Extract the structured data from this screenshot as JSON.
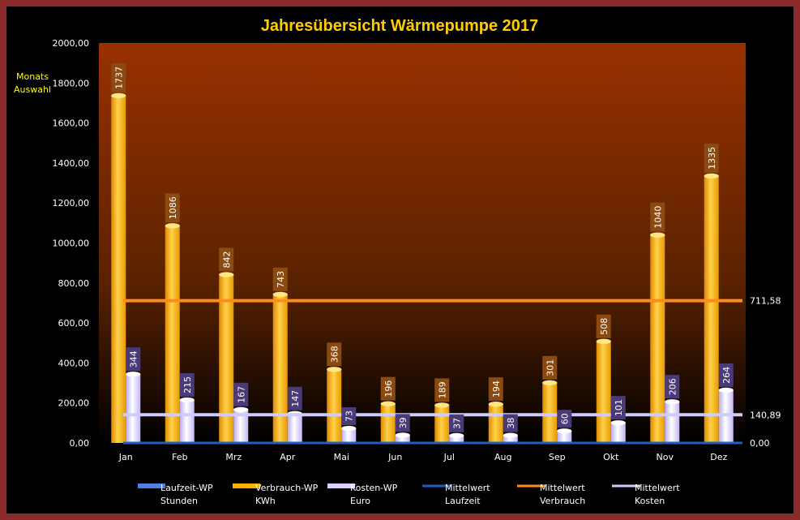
{
  "chart_data": {
    "type": "bar",
    "title": "Jahresübersicht Wärmepumpe  2017",
    "side_label": [
      "Monats",
      "Auswahl"
    ],
    "categories": [
      "Jan",
      "Feb",
      "Mrz",
      "Apr",
      "Mai",
      "Jun",
      "Jul",
      "Aug",
      "Sep",
      "Okt",
      "Nov",
      "Dez"
    ],
    "ylim": [
      0,
      2000
    ],
    "yticks": [
      "0,00",
      "200,00",
      "400,00",
      "600,00",
      "800,00",
      "1000,00",
      "1200,00",
      "1400,00",
      "1600,00",
      "1800,00",
      "2000,00"
    ],
    "series": [
      {
        "name": "Laufzeit-WP",
        "unit": "Stunden",
        "kind": "bar",
        "color": "#4f7fe0",
        "values": [
          0,
          0,
          0,
          0,
          0,
          0,
          0,
          0,
          0,
          0,
          0,
          0
        ]
      },
      {
        "name": "Verbrauch-WP",
        "unit": "KWh",
        "kind": "bar",
        "color": "#ffb300",
        "values": [
          1737,
          1086,
          842,
          743,
          368,
          196,
          189,
          194,
          301,
          508,
          1040,
          1335
        ]
      },
      {
        "name": "Kosten-WP",
        "unit": "Euro",
        "kind": "bar",
        "color": "#ddd0ff",
        "values": [
          344,
          215,
          167,
          147,
          73,
          39,
          37,
          38,
          60,
          101,
          206,
          264
        ]
      },
      {
        "name": "Mittelwert",
        "unit": "Laufzeit",
        "kind": "line",
        "color": "#1f5fbf",
        "value": 0,
        "value_label": "0,00"
      },
      {
        "name": "Mittelwert",
        "unit": "Verbrauch",
        "kind": "line",
        "color": "#ff8c1a",
        "value": 711.58,
        "value_label": "711,58"
      },
      {
        "name": "Mittelwert",
        "unit": "Kosten",
        "kind": "line",
        "color": "#ccccff",
        "value": 140.89,
        "value_label": "140,89"
      }
    ],
    "legend_position": "bottom",
    "grid": false
  }
}
